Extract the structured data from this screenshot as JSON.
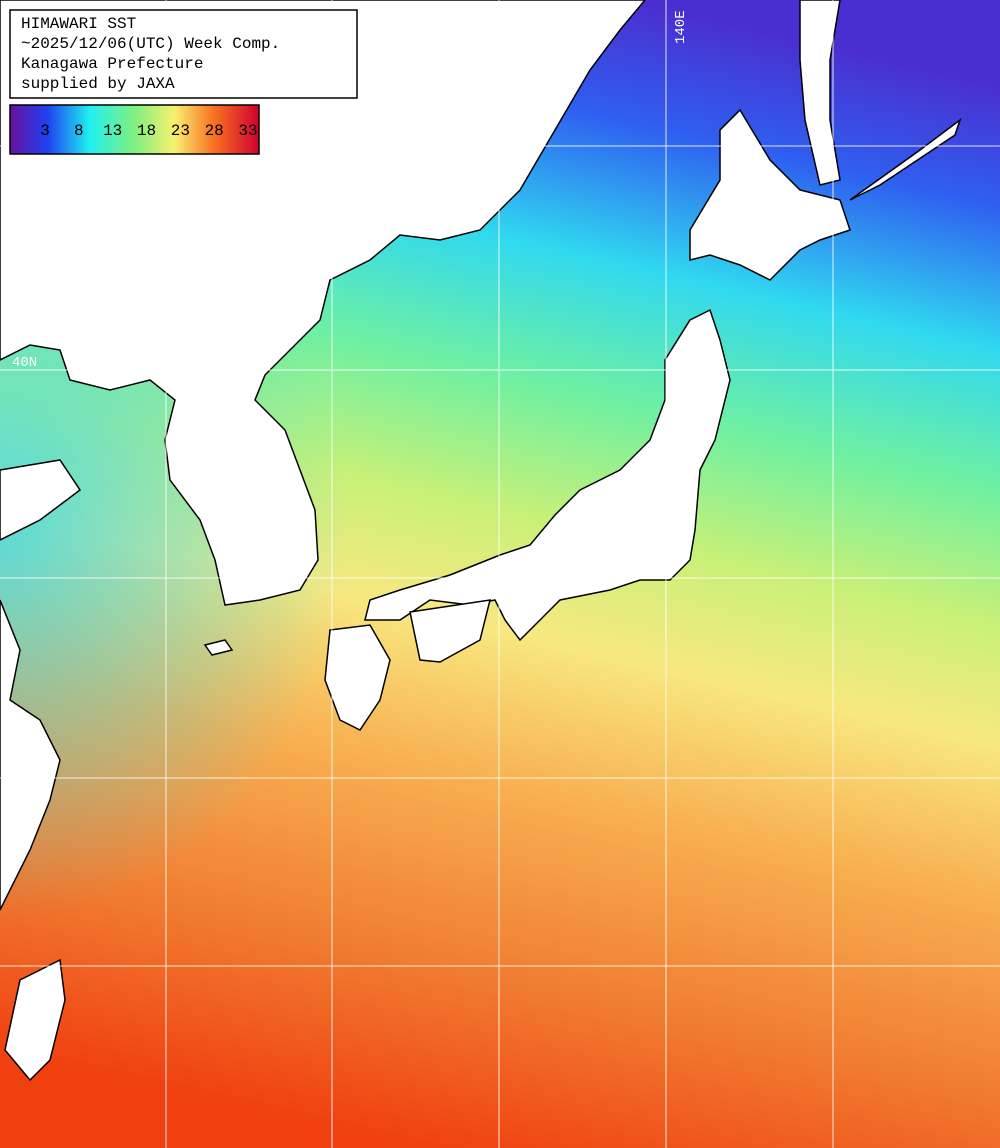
{
  "header": {
    "lines": [
      "HIMAWARI SST",
      "~2025/12/06(UTC) Week Comp.",
      "Kanagawa Prefecture",
      "supplied by JAXA"
    ]
  },
  "legend": {
    "ticks": [
      "3",
      "8",
      "13",
      "18",
      "23",
      "28",
      "33"
    ]
  },
  "grid_labels": {
    "longitude": "140E",
    "latitude": "40N"
  }
}
